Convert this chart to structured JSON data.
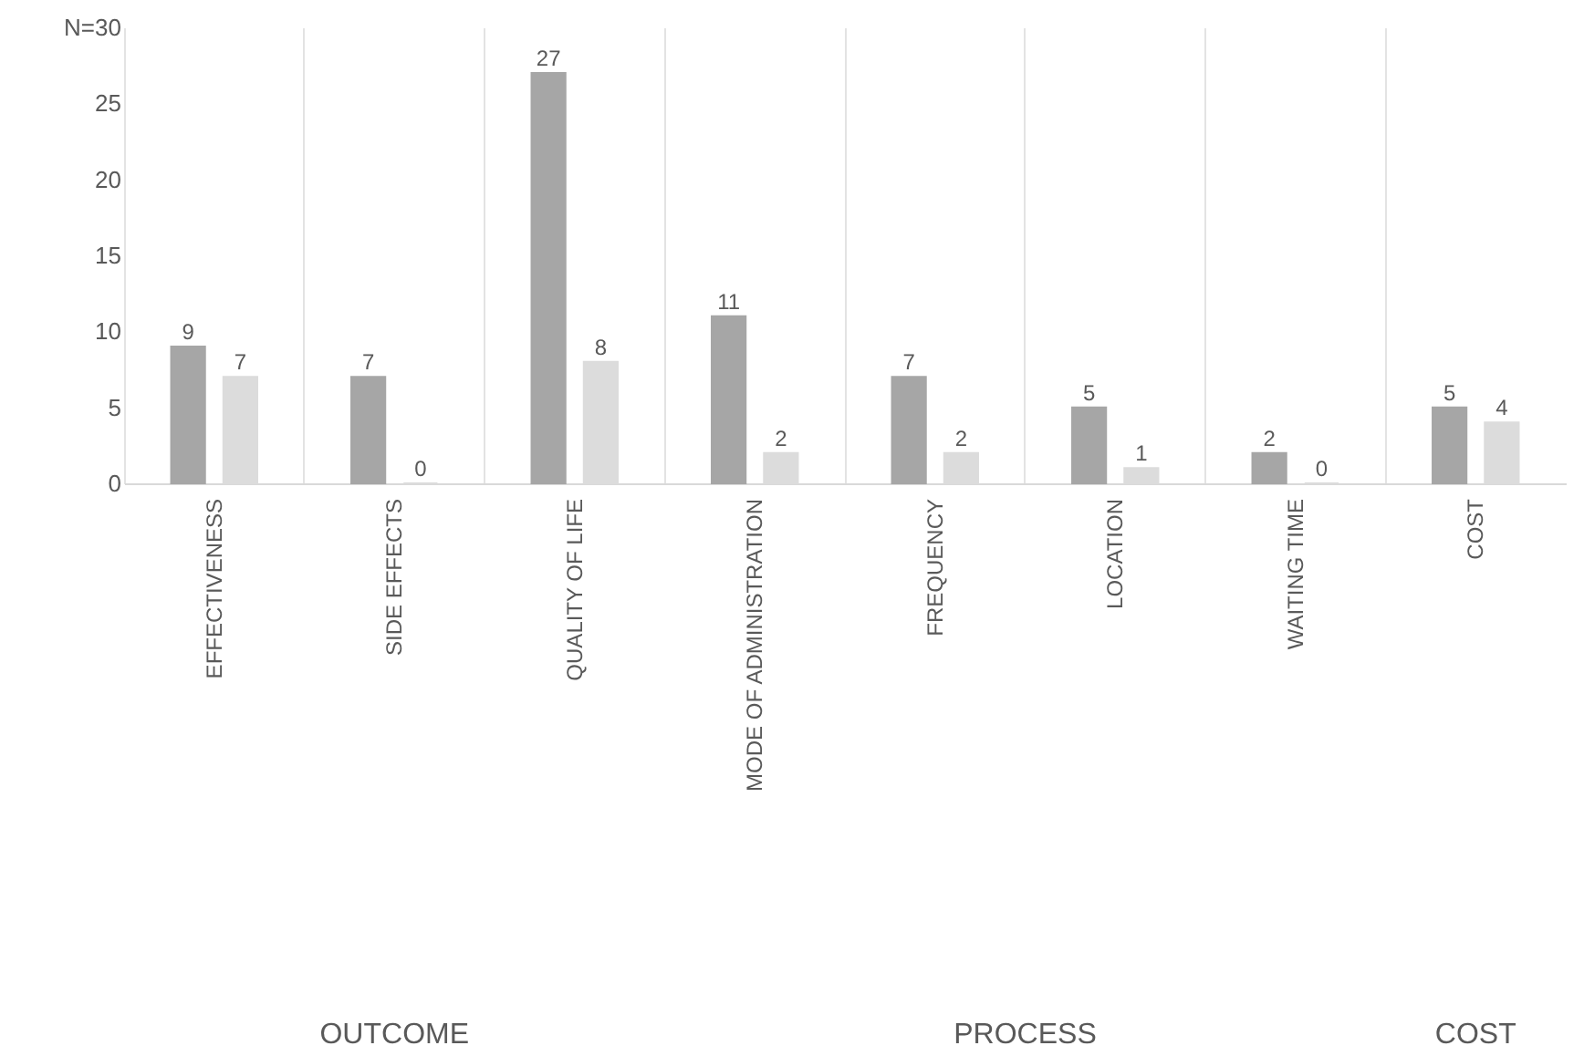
{
  "chart_data": {
    "type": "bar",
    "categories": [
      "EFFECTIVENESS",
      "SIDE EFFECTS",
      "QUALITY OF LIFE",
      "MODE OF ADMINISTRATION",
      "FREQUENCY",
      "LOCATION",
      "WAITING TIME",
      "COST"
    ],
    "series": [
      {
        "color": "#a6a6a6",
        "values": [
          9,
          7,
          27,
          11,
          7,
          5,
          2,
          5
        ]
      },
      {
        "color": "#dcdcdc",
        "values": [
          7,
          0,
          8,
          2,
          2,
          1,
          0,
          4
        ]
      }
    ],
    "ylim": [
      0,
      30
    ],
    "yticks": [
      0,
      5,
      10,
      15,
      20,
      25,
      {
        "value": 30,
        "label": "N=30"
      }
    ],
    "grid": "x",
    "data_labels": true,
    "annotations": [
      "OUTCOME",
      "PROCESS",
      "COST"
    ]
  }
}
